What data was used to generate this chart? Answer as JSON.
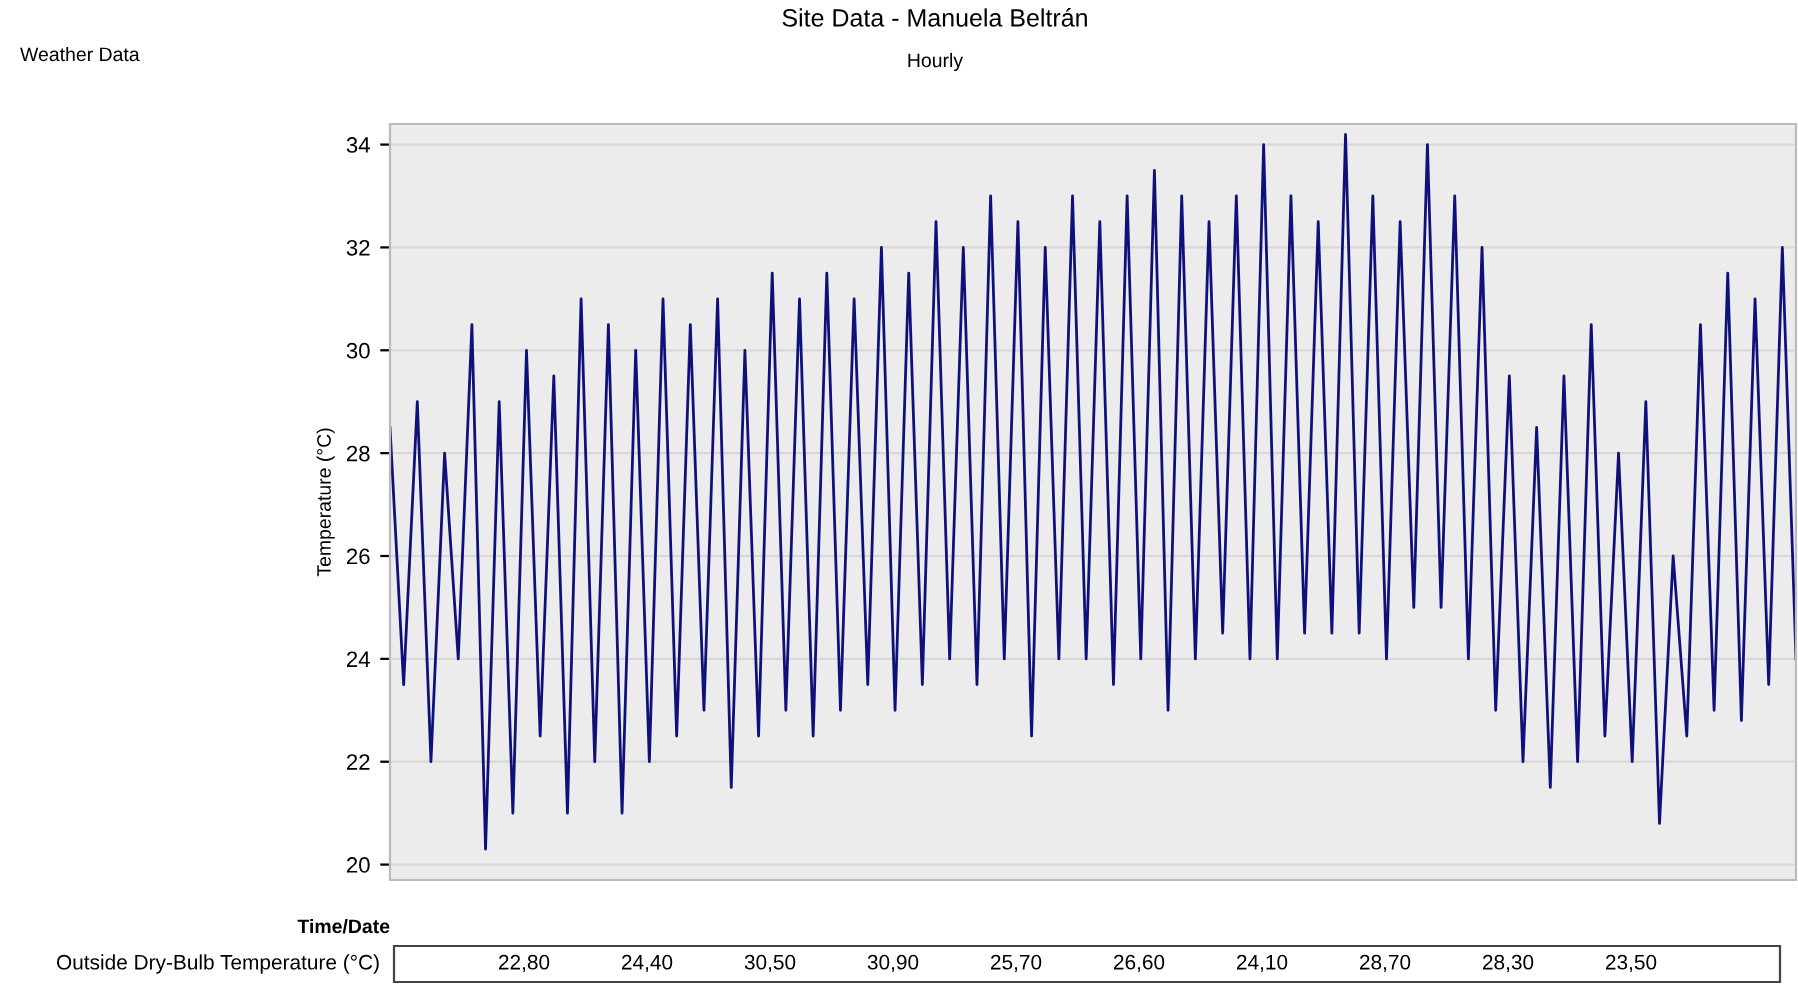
{
  "chart_data": {
    "type": "line",
    "title": "Site Data - Manuela Beltrán",
    "subtitle": "Hourly",
    "ylabel": "Temperature (°C)",
    "xlabel": "Time/Date",
    "annotations": [
      "Weather Data",
      "Outside Dry-Bulb Temperature (°C)",
      "22,80",
      "24,40",
      "30,50",
      "30,90",
      "25,70",
      "26,60",
      "24,10",
      "28,70",
      "28,30",
      "23,50"
    ],
    "categories": [
      null,
      null,
      null,
      null,
      null,
      null,
      null,
      null,
      null,
      null,
      null,
      null,
      null,
      null,
      null,
      null,
      null,
      null,
      null,
      null,
      null,
      null,
      null,
      null,
      null,
      null,
      null,
      null,
      null,
      null,
      null,
      null,
      null,
      null,
      null,
      null,
      null,
      null,
      null,
      null,
      null,
      null,
      null,
      null,
      null,
      null,
      null,
      null,
      null,
      null,
      null,
      null,
      null,
      null,
      null,
      null,
      null,
      null,
      null,
      null,
      null,
      null,
      null,
      null,
      null,
      null,
      null,
      null,
      null,
      null,
      null,
      null,
      null,
      null,
      null,
      null,
      null,
      null,
      null,
      null,
      null,
      null,
      null,
      null,
      null,
      null,
      null,
      null,
      null,
      null,
      null,
      null,
      null,
      null,
      null,
      null,
      null,
      null,
      null,
      null,
      null,
      null,
      null,
      null
    ],
    "series": [
      {
        "color": "#10107a",
        "values": [
          28.5,
          23.5,
          29,
          22,
          28,
          24,
          30.5,
          20.3,
          29,
          21,
          30,
          22.5,
          29.5,
          21,
          31,
          22,
          30.5,
          21,
          30,
          22,
          31,
          22.5,
          30.5,
          23,
          31,
          21.5,
          30,
          22.5,
          31.5,
          23,
          31,
          22.5,
          31.5,
          23,
          31,
          23.5,
          32,
          23,
          31.5,
          23.5,
          32.5,
          24,
          32,
          23.5,
          33,
          24,
          32.5,
          22.5,
          32,
          24,
          33,
          24,
          32.5,
          23.5,
          33,
          24,
          33.5,
          23,
          33,
          24,
          32.5,
          24.5,
          33,
          24,
          34,
          24,
          33,
          24.5,
          32.5,
          24.5,
          34.2,
          24.5,
          33,
          24,
          32.5,
          25,
          34,
          25,
          33,
          24,
          32,
          23,
          29.5,
          22,
          28.5,
          21.5,
          29.5,
          22,
          30.5,
          22.5,
          28,
          22,
          29,
          20.8,
          26,
          22.5,
          30.5,
          23,
          31.5,
          22.8,
          31,
          23.5,
          32,
          24
        ]
      }
    ],
    "ylim": [
      19.7,
      34.4
    ],
    "yticks": [
      20,
      22,
      24,
      26,
      28,
      30,
      32,
      34
    ],
    "grid": "y",
    "legend": false,
    "marker": "none",
    "line_style": "solid"
  }
}
